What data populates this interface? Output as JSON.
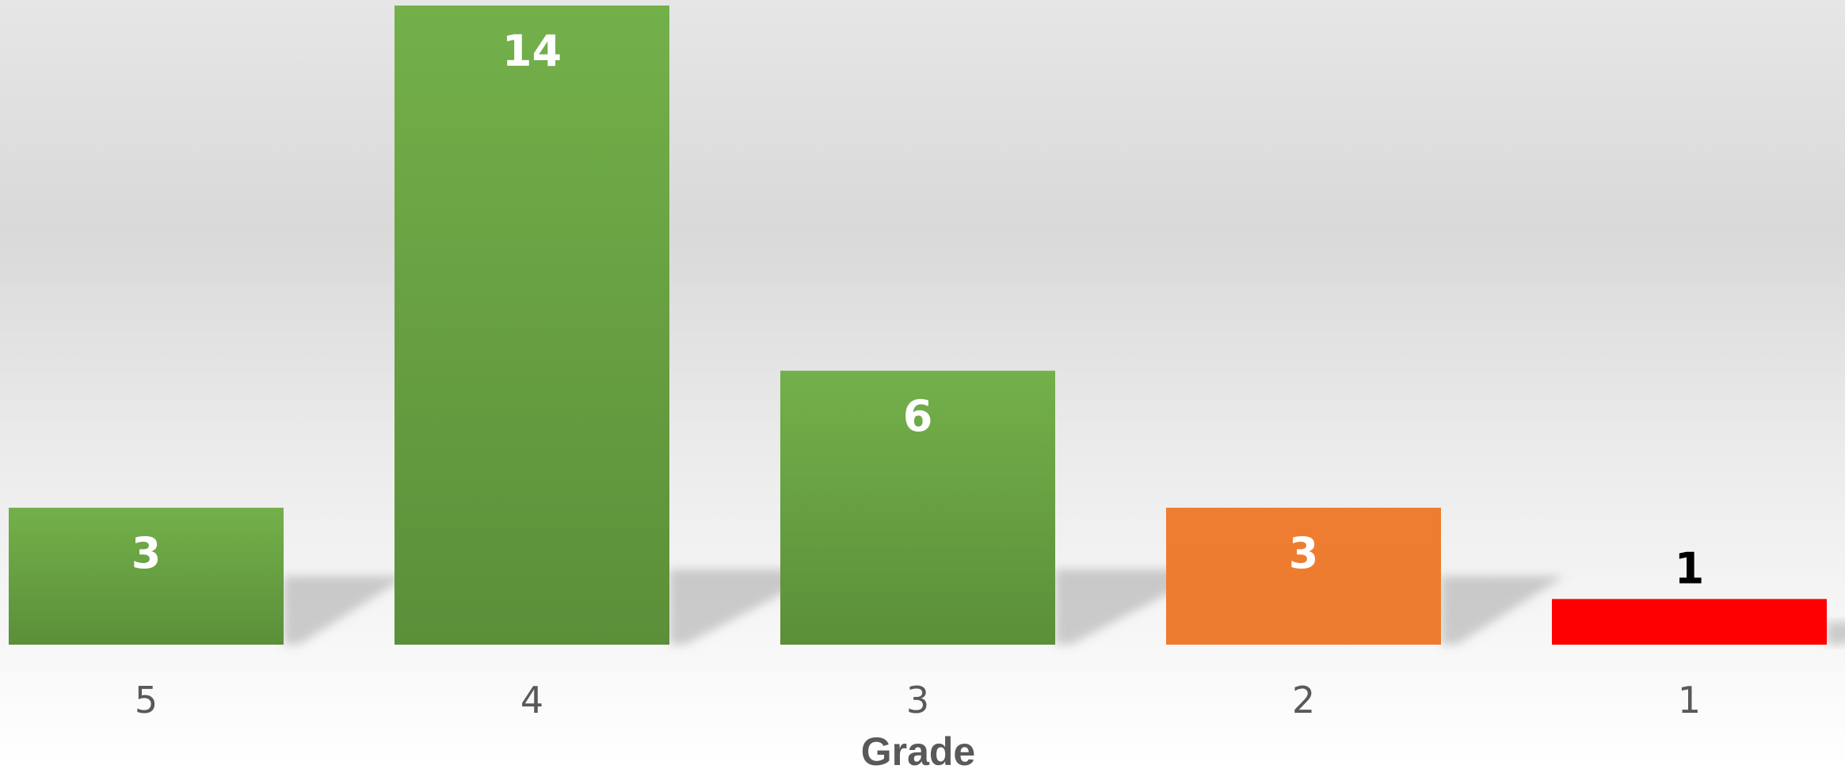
{
  "chart_data": {
    "type": "bar",
    "categories": [
      "5",
      "4",
      "3",
      "2",
      "1"
    ],
    "values": [
      3,
      14,
      6,
      3,
      1
    ],
    "colors": [
      "#70ad47",
      "#70ad47",
      "#70ad47",
      "#ed7d31",
      "#ff0000"
    ],
    "label_colors": [
      "#ffffff",
      "#ffffff",
      "#ffffff",
      "#ffffff",
      "#000000"
    ],
    "title": "",
    "xlabel": "Grade",
    "ylabel": "",
    "ylim": [
      0,
      14
    ],
    "grid": false,
    "legend": "none"
  }
}
